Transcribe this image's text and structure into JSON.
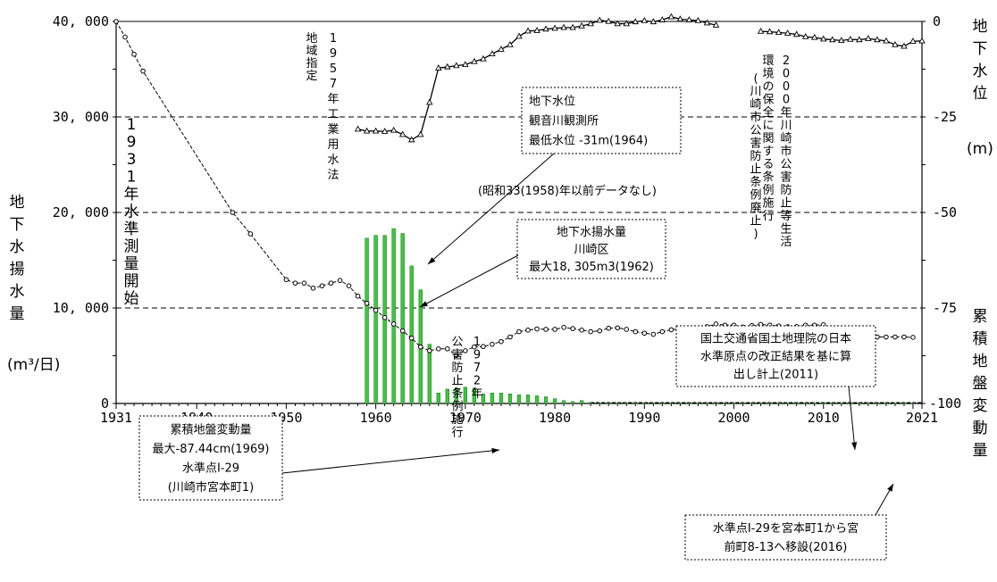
{
  "chart_data": {
    "type": "bar+line",
    "x_range": [
      1931,
      2021
    ],
    "x_ticks": [
      "1931",
      "1940",
      "1950",
      "1960",
      "1970",
      "1980",
      "1990",
      "2000",
      "2010",
      "2021"
    ],
    "y_left": {
      "label_chars": [
        "地",
        "下",
        "水",
        "揚",
        "水",
        "量"
      ],
      "unit": "(m³/日)",
      "range": [
        0,
        40000
      ],
      "ticks": [
        "0",
        "10, 000",
        "20, 000",
        "30, 000",
        "40, 000"
      ]
    },
    "y_right_top": {
      "label_chars": [
        "地",
        "下",
        "水",
        "位"
      ],
      "unit": "(m)",
      "ticks": [
        "0",
        "-25"
      ]
    },
    "y_right_bottom": {
      "label_chars": [
        "累",
        "積",
        "地",
        "盤",
        "変",
        "動",
        "量"
      ],
      "ticks": [
        "-50",
        "-75",
        "-100"
      ]
    },
    "pumping_bars": {
      "name": "地下水揚水量",
      "color": "#3cc83c",
      "x": [
        1959,
        1960,
        1961,
        1962,
        1963,
        1964,
        1965,
        1966,
        1967,
        1968,
        1969,
        1970,
        1971,
        1972,
        1973,
        1974,
        1975,
        1976,
        1977,
        1978,
        1979,
        1980,
        1981,
        1982,
        1983,
        1984,
        1985,
        1986,
        1987,
        1988,
        1989,
        1990,
        1991,
        1992,
        1993,
        1994,
        1995,
        1996,
        1997,
        1998,
        1999,
        2000,
        2001,
        2002,
        2003,
        2004,
        2005,
        2006,
        2007,
        2008,
        2009,
        2010,
        2011,
        2012,
        2013,
        2014,
        2015,
        2016,
        2017,
        2018,
        2019,
        2020
      ],
      "y": [
        17300,
        17600,
        17600,
        18305,
        17800,
        14400,
        11900,
        6200,
        1100,
        1500,
        1600,
        1700,
        1600,
        1000,
        1100,
        1100,
        1000,
        900,
        900,
        800,
        700,
        500,
        300,
        200,
        300,
        100,
        50,
        50,
        50,
        50,
        50,
        50,
        50,
        50,
        50,
        50,
        50,
        50,
        50,
        50,
        50,
        50,
        50,
        50,
        50,
        50,
        50,
        50,
        50,
        50,
        50,
        50,
        50,
        50,
        50,
        50,
        50,
        50,
        50,
        50,
        50,
        50
      ]
    },
    "subsidence_points": {
      "name": "累積地盤変動量",
      "marker": "circle",
      "x": [
        1931,
        1932,
        1933,
        1934,
        1944,
        1946,
        1950,
        1951,
        1952,
        1953,
        1954,
        1955,
        1956,
        1957,
        1958,
        1959,
        1960,
        1961,
        1962,
        1963,
        1964,
        1965,
        1966,
        1967,
        1968,
        1969,
        1970,
        1971,
        1972,
        1973,
        1974,
        1975,
        1976,
        1977,
        1978,
        1979,
        1980,
        1981,
        1982,
        1983,
        1984,
        1985,
        1986,
        1987,
        1988,
        1989,
        1990,
        1991,
        1992,
        1993,
        1994,
        1995,
        1996,
        1997,
        1998,
        1999,
        2000,
        2001,
        2002,
        2003,
        2004,
        2005,
        2006,
        2007,
        2008,
        2009,
        2010,
        2011,
        2012,
        2013,
        2014,
        2016,
        2017,
        2018,
        2019,
        2020
      ],
      "y": [
        0,
        -4.1,
        -8.6,
        -13,
        -50,
        -55.6,
        -67.6,
        -68.5,
        -68.5,
        -69.8,
        -69.2,
        -68.5,
        -67.8,
        -69.2,
        -71.9,
        -73.8,
        -75.6,
        -77.5,
        -79.2,
        -81,
        -82.9,
        -85.2,
        -86.2,
        -85.7,
        -85.7,
        -87.44,
        -86.2,
        -85.2,
        -85.1,
        -84.5,
        -83.8,
        -82.6,
        -81.2,
        -80.8,
        -80.5,
        -80.6,
        -80.6,
        -80.1,
        -80.4,
        -80.8,
        -81.2,
        -81,
        -80.3,
        -80.2,
        -80.6,
        -81.2,
        -81.6,
        -81.9,
        -81.2,
        -80.7,
        -80.4,
        -80.5,
        -80.5,
        -79.9,
        -79.2,
        -79.5,
        -79.5,
        -80,
        -79.6,
        -79.3,
        -79.5,
        -79.7,
        -79.9,
        -79.9,
        -79.5,
        -79.5,
        -79.4,
        -82.4,
        -82.6,
        -82.4,
        -82.4,
        -82.6,
        -82.6,
        -82.6,
        -82.6,
        -82.7
      ]
    },
    "water_level_points": {
      "name": "地下水位",
      "marker": "triangle",
      "x": [
        1958,
        1959,
        1960,
        1961,
        1962,
        1963,
        1964,
        1965,
        1966,
        1967,
        1968,
        1969,
        1970,
        1971,
        1972,
        1973,
        1974,
        1975,
        1976,
        1977,
        1978,
        1979,
        1980,
        1981,
        1982,
        1983,
        1984,
        1985,
        1986,
        1987,
        1988,
        1989,
        1990,
        1991,
        1992,
        1993,
        1994,
        1995,
        1996,
        1997,
        1998,
        2003,
        2004,
        2005,
        2006,
        2007,
        2008,
        2009,
        2010,
        2011,
        2012,
        2013,
        2014,
        2015,
        2016,
        2017,
        2018,
        2019,
        2020,
        2021
      ],
      "y": [
        -28.2,
        -28.7,
        -28.7,
        -28.8,
        -28.5,
        -29.6,
        -31,
        -29.6,
        -21.2,
        -12.2,
        -11.9,
        -11.6,
        -11.3,
        -10.5,
        -9.8,
        -8.5,
        -7.3,
        -6.1,
        -3.9,
        -2.5,
        -2.4,
        -2.0,
        -1.8,
        -1.6,
        -1.6,
        -1.2,
        -0.6,
        0.3,
        0.0,
        -0.6,
        -0.6,
        -0.1,
        0.2,
        -0.1,
        0.4,
        1.2,
        0.6,
        0.4,
        0.2,
        -0.4,
        -1.0,
        -2.6,
        -2.7,
        -2.9,
        -3.1,
        -3.4,
        -4.0,
        -4.2,
        -4.6,
        -4.8,
        -5.0,
        -4.7,
        -4.8,
        -4.5,
        -4.8,
        -5.1,
        -6.1,
        -6.5,
        -5.2,
        -5.1
      ]
    },
    "annotations": {
      "start_1931": [
        "1",
        "9",
        "3",
        "1",
        "年",
        "水",
        "準",
        "測",
        "量",
        "開",
        "始"
      ],
      "law_1957_a": [
        "地",
        "域",
        "指",
        "定"
      ],
      "law_1957_b": [
        "1",
        "9",
        "5",
        "7",
        "年",
        "工",
        "業",
        "用",
        "水",
        "法"
      ],
      "ordinance_1972_a": [
        "公",
        "害",
        "防",
        "止",
        "条",
        "例",
        "施",
        "行"
      ],
      "ordinance_1972_b": [
        "1",
        "9",
        "7",
        "2",
        "年"
      ],
      "ordinance_2000_a": [
        "環",
        "境",
        "の",
        "保",
        "全",
        "に",
        "関",
        "す",
        "る",
        "条",
        "例",
        "施",
        "行"
      ],
      "ordinance_2000_b": [
        "2",
        "0",
        "0",
        "0",
        "年",
        "川",
        "崎",
        "市",
        "公",
        "害",
        "防",
        "止",
        "等",
        "生",
        "活"
      ],
      "ordinance_2000_c": [
        "(",
        "川",
        "崎",
        "市",
        "公",
        "害",
        "防",
        "止",
        "条",
        "例",
        "廃",
        "止",
        ")"
      ],
      "no_data_note": "(昭和33(1958)年以前データなし)",
      "wl_box": [
        "地下水位",
        "観音川観測所",
        "最低水位 -31m(1964)"
      ],
      "pump_box": [
        "地下水揚水量",
        "川崎区",
        "最大18, 305m3(1962)"
      ],
      "sub_box": [
        "累積地盤変動量",
        "最大-87.44cm(1969)",
        "水準点I-29",
        "(川崎市宮本町1)"
      ],
      "gsi_box": [
        "国土交通省国土地理院の日本",
        "水準原点の改正結果を基に算",
        "出し計上(2011)"
      ],
      "move_box": [
        "水準点I-29を宮本町1から宮",
        "前町8-13へ移設(2016)"
      ]
    }
  }
}
